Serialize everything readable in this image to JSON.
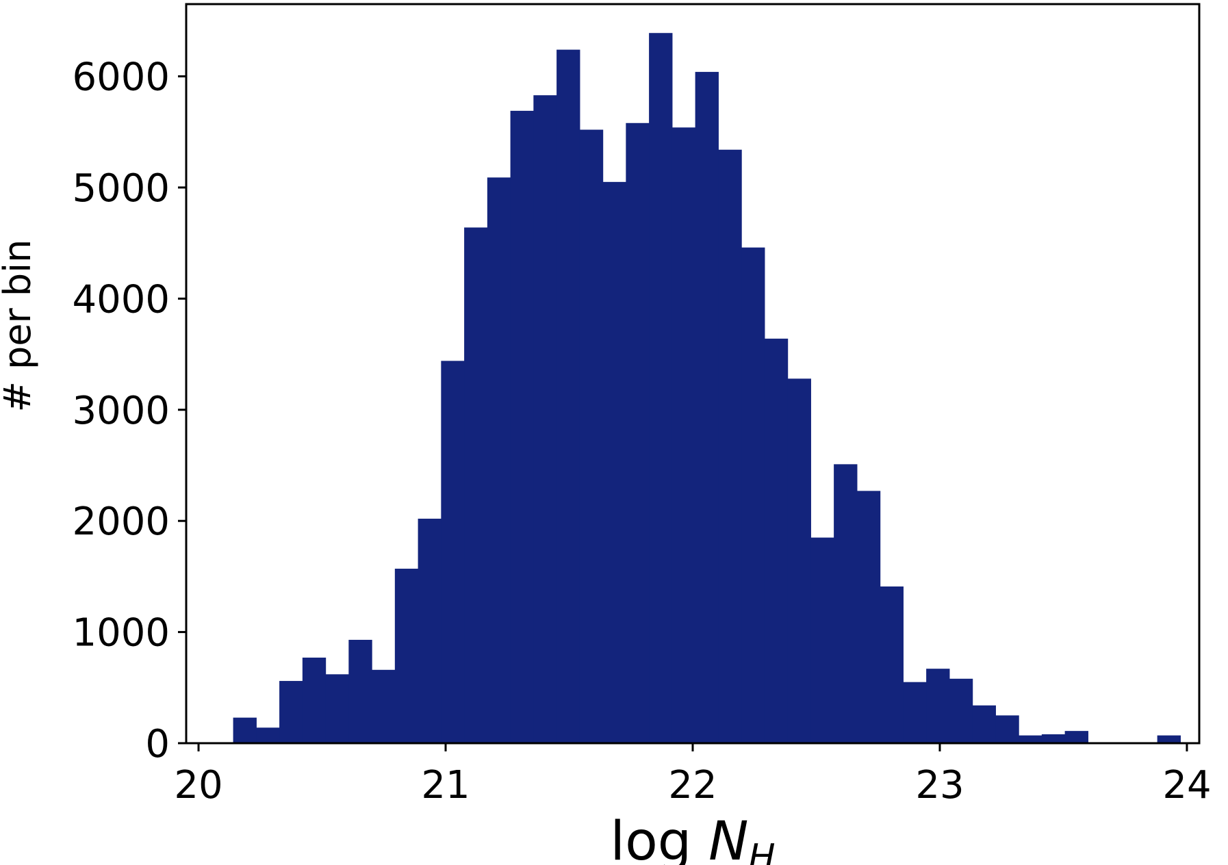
{
  "chart_data": {
    "type": "bar",
    "title": "",
    "xlabel": "log N_H",
    "xlabel_main": "log ",
    "xlabel_symbol": "N",
    "xlabel_subscript": "H",
    "ylabel": "# per bin",
    "bar_color": "#13247c",
    "xlim": [
      19.95,
      24.05
    ],
    "ylim": [
      0,
      6650
    ],
    "x_ticks": [
      20,
      21,
      22,
      23,
      24
    ],
    "x_tick_labels": [
      "20",
      "21",
      "22",
      "23",
      "24"
    ],
    "y_ticks": [
      0,
      1000,
      2000,
      3000,
      4000,
      5000,
      6000
    ],
    "y_tick_labels": [
      "0",
      "1000",
      "2000",
      "3000",
      "4000",
      "5000",
      "6000"
    ],
    "grid": false,
    "bin_width": 0.0935,
    "bin_edges_start": 20.14,
    "values": [
      230,
      140,
      560,
      770,
      620,
      930,
      660,
      1570,
      2020,
      3440,
      4640,
      5090,
      5690,
      5830,
      6240,
      5520,
      5050,
      5580,
      6390,
      5540,
      6040,
      5340,
      4460,
      3640,
      3280,
      1850,
      2510,
      2270,
      1410,
      550,
      670,
      580,
      340,
      250,
      70,
      80,
      110,
      0,
      0,
      0,
      70
    ]
  }
}
